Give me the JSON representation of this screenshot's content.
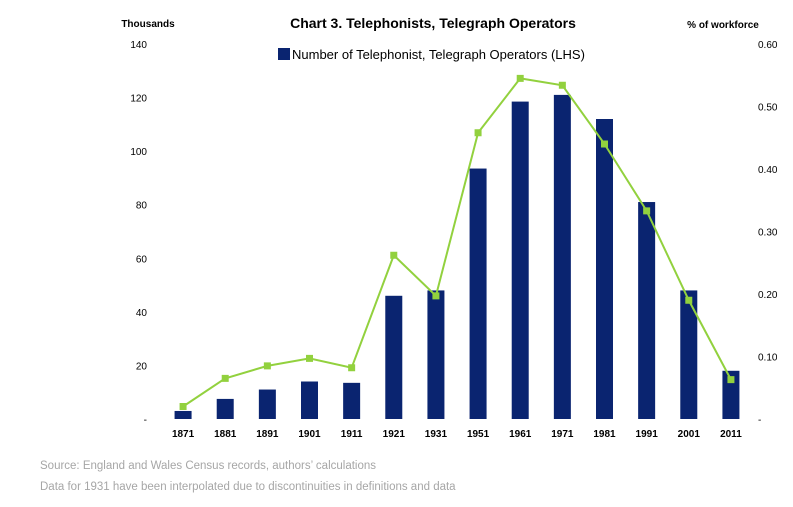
{
  "chart_data": {
    "type": "bar",
    "title": "Chart 3. Telephonists, Telegraph Operators",
    "left_axis_title": "Thousands",
    "right_axis_title": "% of workforce",
    "categories": [
      "1871",
      "1881",
      "1891",
      "1901",
      "1911",
      "1921",
      "1931",
      "1951",
      "1961",
      "1971",
      "1981",
      "1991",
      "2001",
      "2011"
    ],
    "series": [
      {
        "name": "Number of Telephonist, Telegraph Operators (LHS)",
        "type": "bar",
        "axis": "left",
        "color": "#0a2470",
        "values": [
          3,
          7.5,
          11,
          14,
          13.5,
          46,
          48,
          93.5,
          118.5,
          121,
          112,
          81,
          48,
          18
        ]
      },
      {
        "type": "line",
        "axis": "right",
        "color": "#92d13e",
        "marker": "square",
        "values": [
          0.02,
          0.065,
          0.085,
          0.097,
          0.082,
          0.262,
          0.197,
          0.458,
          0.545,
          0.534,
          0.44,
          0.333,
          0.19,
          0.063
        ]
      }
    ],
    "left_axis": {
      "min": 0,
      "max": 140,
      "ticks": [
        "-",
        "20",
        "40",
        "60",
        "80",
        "100",
        "120",
        "140"
      ]
    },
    "right_axis": {
      "min": 0,
      "max": 0.6,
      "ticks": [
        "-",
        "0.10",
        "0.20",
        "0.30",
        "0.40",
        "0.50",
        "0.60"
      ]
    },
    "grid": false,
    "legend_position": "top-center"
  },
  "source_notes": [
    "Source: England and Wales Census records, authors’ calculations",
    "Data for 1931 have been interpolated due to discontinuities in definitions and data"
  ]
}
